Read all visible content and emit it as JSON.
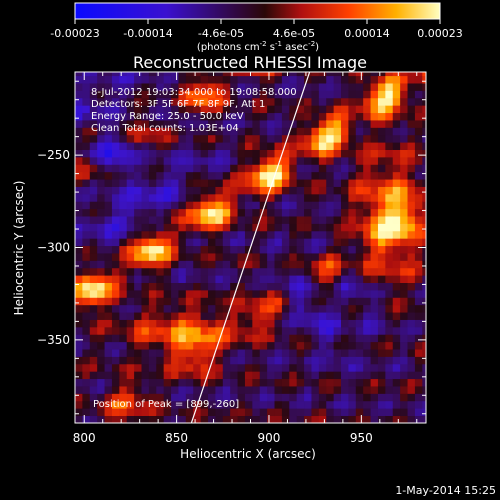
{
  "colorbar": {
    "tick_labels": [
      "-0.00023",
      "-0.00014",
      "-4.6e-05",
      "4.6e-05",
      "0.00014",
      "0.00023"
    ],
    "unit_prefix": "(photons cm",
    "unit_sup1": "-2",
    "unit_mid": " s",
    "unit_sup2": "-1",
    "unit_mid2": " asec",
    "unit_suffix": ")",
    "range": [
      -0.00023,
      0.00023
    ]
  },
  "chart_data": {
    "type": "heatmap",
    "title": "Reconstructed RHESSI Image",
    "xlabel": "Heliocentric X (arcsec)",
    "ylabel": "Heliocentric Y (arcsec)",
    "xlim": [
      795,
      985
    ],
    "ylim": [
      -395,
      -205
    ],
    "x_ticks": [
      800,
      850,
      900,
      950
    ],
    "x_tick_labels": [
      "800",
      "850",
      "900",
      "950"
    ],
    "y_ticks": [
      -250,
      -300,
      -350
    ],
    "y_tick_labels": [
      "-250",
      "-300",
      "-350"
    ],
    "limb_line": [
      [
        858,
        -395
      ],
      [
        922,
        -205
      ]
    ],
    "annotations": [
      "8-Jul-2012 19:03:34.000 to 19:08:58.000",
      "Detectors: 3F 5F 6F 7F 8F 9F, Att 1",
      "Energy Range: 25.0 - 50.0 keV",
      "Clean     Total counts: 1.03E+04"
    ],
    "peak_label": "Position of Peak = [899,-260]",
    "peak": [
      899,
      -260
    ]
  },
  "footer": {
    "date": "1-May-2014 15:25"
  }
}
